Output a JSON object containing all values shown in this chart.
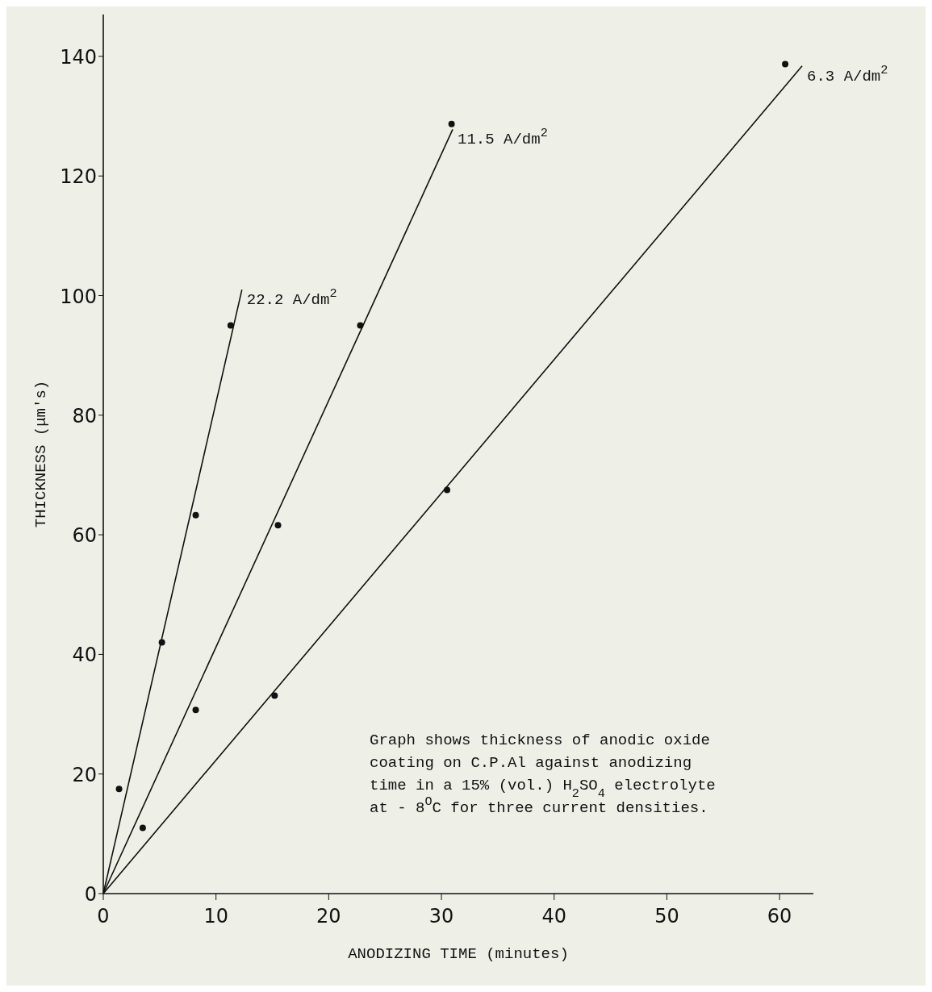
{
  "chart_data": {
    "type": "scatter",
    "xlabel": "ANODIZING TIME (minutes)",
    "ylabel": "THICKNESS (μm's)",
    "xlim": [
      0,
      63
    ],
    "xticks": [
      0,
      10,
      20,
      30,
      40,
      50,
      60
    ],
    "ylim": [
      0,
      147
    ],
    "yticks": [
      0,
      20,
      40,
      60,
      80,
      100,
      120,
      140
    ],
    "grid": false,
    "series": [
      {
        "type": "line",
        "name": "22.2 A/dm$^{2}$",
        "color": "#111111",
        "x": [
          0,
          12.3
        ],
        "values": [
          0,
          101
        ],
        "marker": "none",
        "line_style": "solid"
      },
      {
        "type": "line",
        "name": "11.5 A/dm$^{2}$",
        "color": "#111111",
        "x": [
          0,
          31
        ],
        "values": [
          0,
          127.8
        ],
        "marker": "none",
        "line_style": "solid"
      },
      {
        "type": "line",
        "name": "6.3 A/dm$^{2}$",
        "color": "#111111",
        "x": [
          0,
          62
        ],
        "values": [
          0,
          138.4
        ],
        "marker": "none",
        "line_style": "solid"
      },
      {
        "color": "#111111",
        "x": [
          1.4,
          5.2,
          8.2,
          11.3
        ],
        "values": [
          17.5,
          42,
          63.3,
          95
        ],
        "marker": "circle"
      },
      {
        "color": "#111111",
        "x": [
          3.5,
          8.2,
          15.5,
          22.8,
          30.9
        ],
        "values": [
          11,
          30.7,
          61.6,
          95,
          128.7
        ],
        "marker": "circle"
      },
      {
        "color": "#111111",
        "x": [
          15.2,
          30.5,
          60.5
        ],
        "values": [
          33.1,
          67.5,
          138.7
        ],
        "marker": "circle"
      }
    ],
    "annotations": [
      "Graph shows thickness of anodic oxide coating on C.P.Al against anodizing time in a 15% (vol.) H$_{2}$SO$_{4}$ electrolyte at - 8$^{O}$C for three current densities."
    ]
  }
}
